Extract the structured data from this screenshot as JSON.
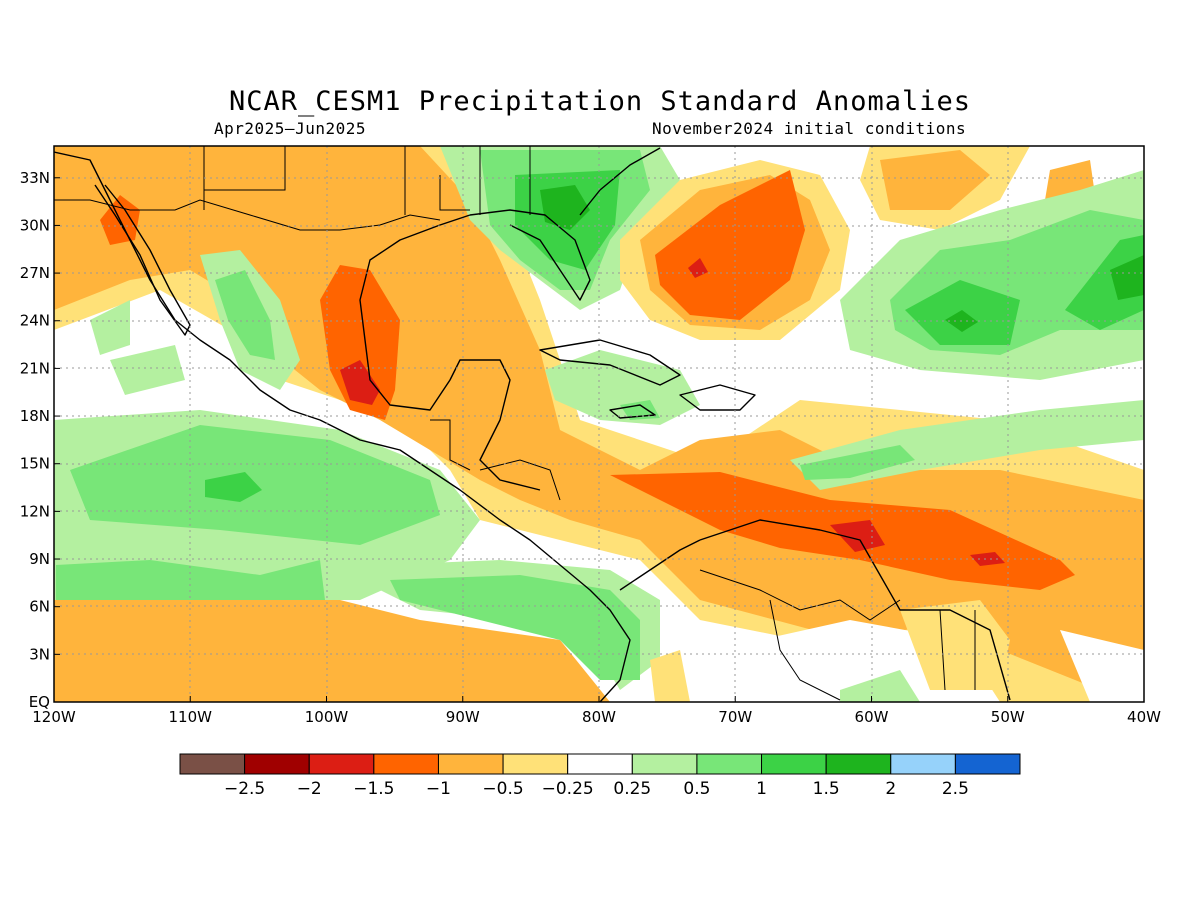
{
  "title": "NCAR_CESM1 Precipitation Standard Anomalies",
  "subtitle_left": "Apr2025–Jun2025",
  "subtitle_right": "November2024 initial conditions",
  "map": {
    "lon_range": [
      -120,
      -40
    ],
    "lat_range": [
      0,
      35
    ],
    "x_ticks": [
      {
        "value": -120,
        "label": "120W"
      },
      {
        "value": -110,
        "label": "110W"
      },
      {
        "value": -100,
        "label": "100W"
      },
      {
        "value": -90,
        "label": "90W"
      },
      {
        "value": -80,
        "label": "80W"
      },
      {
        "value": -70,
        "label": "70W"
      },
      {
        "value": -60,
        "label": "60W"
      },
      {
        "value": -50,
        "label": "50W"
      },
      {
        "value": -40,
        "label": "40W"
      }
    ],
    "y_ticks": [
      {
        "value": 0,
        "label": "EQ"
      },
      {
        "value": 3,
        "label": "3N"
      },
      {
        "value": 6,
        "label": "6N"
      },
      {
        "value": 9,
        "label": "9N"
      },
      {
        "value": 12,
        "label": "12N"
      },
      {
        "value": 15,
        "label": "15N"
      },
      {
        "value": 18,
        "label": "18N"
      },
      {
        "value": 21,
        "label": "21N"
      },
      {
        "value": 24,
        "label": "24N"
      },
      {
        "value": 27,
        "label": "27N"
      },
      {
        "value": 30,
        "label": "30N"
      },
      {
        "value": 33,
        "label": "33N"
      }
    ]
  },
  "colorbar": {
    "colors": [
      "#7a5046",
      "#a00000",
      "#dc1e14",
      "#ff6400",
      "#ffb43c",
      "#ffe178",
      "#ffffff",
      "#b4f0a0",
      "#78e678",
      "#3cd246",
      "#1eb41e",
      "#96d2fa",
      "#1464d2"
    ],
    "labels": [
      "−2.5",
      "−2",
      "−1.5",
      "−1",
      "−0.5",
      "−0.25",
      "0.25",
      "0.5",
      "1",
      "1.5",
      "2",
      "2.5"
    ]
  }
}
